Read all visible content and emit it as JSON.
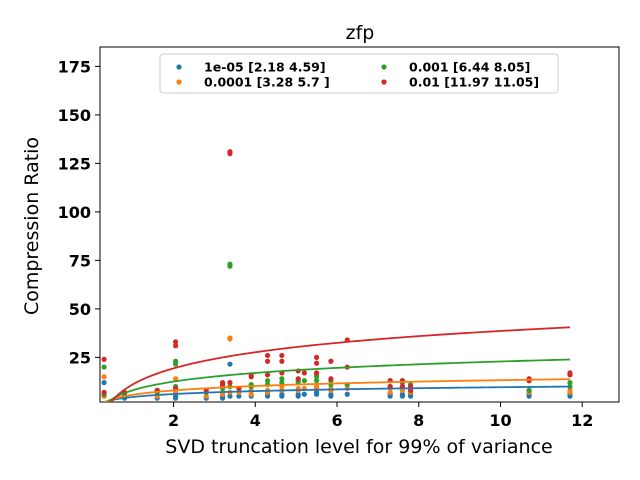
{
  "chart_data": {
    "type": "scatter",
    "title": "zfp",
    "xlabel": "SVD truncation level for 99% of variance",
    "ylabel": "Compression Ratio",
    "xlim": [
      0.2,
      12.9
    ],
    "ylim": [
      2,
      185
    ],
    "xticks": [
      2,
      4,
      6,
      8,
      10,
      12
    ],
    "yticks": [
      25,
      50,
      75,
      100,
      125,
      150,
      175
    ],
    "grid": false,
    "legend_placement": "top-center",
    "legend_columns": 2,
    "fit_x_range": [
      0.3,
      11.7
    ],
    "x": [
      0.3,
      0.8,
      1.6,
      2.05,
      2.8,
      3.2,
      3.38,
      3.6,
      3.9,
      4.3,
      4.65,
      5.05,
      5.5,
      5.85,
      6.25,
      7.3,
      7.6,
      7.8,
      10.7,
      11.7
    ],
    "series": [
      {
        "name": "1e-05 [2.18 4.59]",
        "color": "#1f77b4",
        "fit": {
          "a": 2.18,
          "b": 4.59
        },
        "points": [
          [
            0.3,
            12
          ],
          [
            0.3,
            5
          ],
          [
            0.8,
            4
          ],
          [
            1.6,
            4
          ],
          [
            2.05,
            5
          ],
          [
            2.05,
            4
          ],
          [
            2.8,
            4
          ],
          [
            3.2,
            4
          ],
          [
            3.2,
            5
          ],
          [
            3.38,
            21.5
          ],
          [
            3.38,
            5
          ],
          [
            3.6,
            5
          ],
          [
            3.9,
            5
          ],
          [
            4.3,
            5
          ],
          [
            4.3,
            6
          ],
          [
            4.65,
            5
          ],
          [
            4.65,
            6
          ],
          [
            5.05,
            5
          ],
          [
            5.05,
            6
          ],
          [
            5.2,
            6
          ],
          [
            5.5,
            6
          ],
          [
            5.5,
            7
          ],
          [
            5.85,
            5
          ],
          [
            5.85,
            6
          ],
          [
            6.25,
            6
          ],
          [
            7.3,
            5
          ],
          [
            7.3,
            6
          ],
          [
            7.6,
            5
          ],
          [
            7.6,
            6
          ],
          [
            7.8,
            5
          ],
          [
            7.8,
            6
          ],
          [
            10.7,
            5
          ],
          [
            10.7,
            6
          ],
          [
            11.7,
            5
          ],
          [
            11.7,
            6
          ]
        ]
      },
      {
        "name": "0.0001 [3.28 5.7 ]",
        "color": "#ff7f0e",
        "fit": {
          "a": 3.28,
          "b": 5.7
        },
        "points": [
          [
            0.3,
            15
          ],
          [
            0.3,
            5
          ],
          [
            0.8,
            5
          ],
          [
            1.6,
            5
          ],
          [
            1.6,
            6
          ],
          [
            2.05,
            14
          ],
          [
            2.05,
            7
          ],
          [
            2.8,
            5
          ],
          [
            3.2,
            6
          ],
          [
            3.2,
            7
          ],
          [
            3.38,
            35
          ],
          [
            3.38,
            34.5
          ],
          [
            3.38,
            7
          ],
          [
            3.6,
            7
          ],
          [
            3.9,
            6
          ],
          [
            3.9,
            8
          ],
          [
            4.3,
            7
          ],
          [
            4.3,
            8
          ],
          [
            4.65,
            8
          ],
          [
            4.65,
            10
          ],
          [
            5.05,
            8
          ],
          [
            5.05,
            9
          ],
          [
            5.2,
            9
          ],
          [
            5.5,
            9
          ],
          [
            5.5,
            10
          ],
          [
            5.85,
            8
          ],
          [
            5.85,
            9
          ],
          [
            6.25,
            11
          ],
          [
            6.25,
            9
          ],
          [
            7.3,
            7
          ],
          [
            7.3,
            9
          ],
          [
            7.6,
            8
          ],
          [
            7.6,
            9
          ],
          [
            7.8,
            7
          ],
          [
            7.8,
            8
          ],
          [
            10.7,
            7
          ],
          [
            10.7,
            8
          ],
          [
            11.7,
            7
          ],
          [
            11.7,
            8
          ]
        ]
      },
      {
        "name": "0.001 [6.44 8.05]",
        "color": "#2ca02c",
        "fit": {
          "a": 6.44,
          "b": 8.05
        },
        "points": [
          [
            0.3,
            20
          ],
          [
            0.3,
            6
          ],
          [
            0.8,
            6
          ],
          [
            1.6,
            7
          ],
          [
            1.6,
            8
          ],
          [
            2.05,
            23
          ],
          [
            2.05,
            21.5
          ],
          [
            2.05,
            10
          ],
          [
            2.8,
            7
          ],
          [
            3.2,
            9
          ],
          [
            3.2,
            10
          ],
          [
            3.38,
            73
          ],
          [
            3.38,
            72
          ],
          [
            3.38,
            10
          ],
          [
            3.6,
            9
          ],
          [
            3.9,
            10
          ],
          [
            3.9,
            11
          ],
          [
            4.3,
            11
          ],
          [
            4.3,
            13
          ],
          [
            4.65,
            12
          ],
          [
            4.65,
            14
          ],
          [
            5.05,
            12
          ],
          [
            5.05,
            13
          ],
          [
            5.2,
            13
          ],
          [
            5.5,
            13
          ],
          [
            5.5,
            15
          ],
          [
            5.5,
            16
          ],
          [
            5.85,
            11
          ],
          [
            5.85,
            13
          ],
          [
            6.25,
            11
          ],
          [
            7.3,
            10
          ],
          [
            7.3,
            13
          ],
          [
            7.6,
            10
          ],
          [
            7.6,
            12
          ],
          [
            7.8,
            9
          ],
          [
            7.8,
            11
          ],
          [
            10.7,
            8
          ],
          [
            10.7,
            13
          ],
          [
            11.7,
            10
          ],
          [
            11.7,
            12
          ]
        ]
      },
      {
        "name": "0.01 [11.97 11.05]",
        "color": "#d62728",
        "fit": {
          "a": 11.97,
          "b": 11.05
        },
        "points": [
          [
            0.3,
            24
          ],
          [
            0.3,
            7
          ],
          [
            0.8,
            7
          ],
          [
            1.6,
            8
          ],
          [
            2.05,
            33
          ],
          [
            2.05,
            31
          ],
          [
            2.05,
            9
          ],
          [
            2.8,
            8
          ],
          [
            3.2,
            11
          ],
          [
            3.2,
            12
          ],
          [
            3.38,
            131
          ],
          [
            3.38,
            130
          ],
          [
            3.38,
            12
          ],
          [
            3.6,
            9
          ],
          [
            3.9,
            15
          ],
          [
            3.9,
            16
          ],
          [
            4.3,
            26
          ],
          [
            4.3,
            23
          ],
          [
            4.3,
            16
          ],
          [
            4.65,
            26
          ],
          [
            4.65,
            23
          ],
          [
            4.65,
            17
          ],
          [
            5.05,
            18
          ],
          [
            5.05,
            14
          ],
          [
            5.2,
            17
          ],
          [
            5.5,
            25
          ],
          [
            5.5,
            22
          ],
          [
            5.5,
            17
          ],
          [
            5.85,
            23
          ],
          [
            5.85,
            14
          ],
          [
            6.25,
            34
          ],
          [
            6.25,
            20
          ],
          [
            7.3,
            13
          ],
          [
            7.3,
            10
          ],
          [
            7.6,
            13
          ],
          [
            7.6,
            10
          ],
          [
            7.8,
            10
          ],
          [
            7.8,
            8
          ],
          [
            10.7,
            14
          ],
          [
            10.7,
            13
          ],
          [
            11.7,
            17
          ],
          [
            11.7,
            16
          ]
        ]
      }
    ]
  }
}
